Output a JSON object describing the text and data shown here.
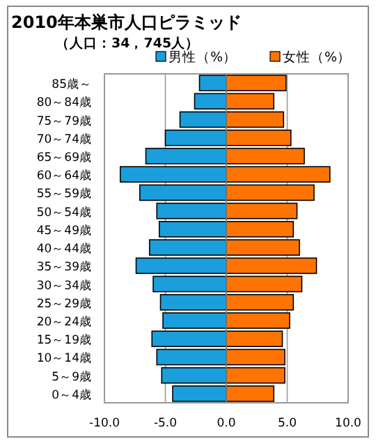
{
  "chart_data": {
    "type": "bar",
    "orientation": "horizontal",
    "title": "2010年本巣市人口ピラミッド",
    "subtitle": "（人口：34，745人）",
    "categories": [
      "85歳～",
      "80～84歳",
      "75～79歳",
      "70～74歳",
      "65～69歳",
      "60～64歳",
      "55～59歳",
      "50～54歳",
      "45～49歳",
      "40～44歳",
      "35～39歳",
      "30～34歳",
      "25～29歳",
      "20～24歳",
      "15～19歳",
      "10～14歳",
      "5～9歳",
      "0～4歳"
    ],
    "series": [
      {
        "name": "男性（%）",
        "color": "#1a9fdc",
        "values": [
          -2.2,
          -2.6,
          -3.8,
          -5.0,
          -6.6,
          -8.7,
          -7.1,
          -5.7,
          -5.5,
          -6.3,
          -7.4,
          -6.0,
          -5.4,
          -5.2,
          -6.1,
          -5.7,
          -5.3,
          -4.4
        ]
      },
      {
        "name": "女性（%）",
        "color": "#ff7400",
        "values": [
          4.9,
          3.9,
          4.7,
          5.3,
          6.4,
          8.5,
          7.2,
          5.8,
          5.5,
          6.0,
          7.4,
          6.2,
          5.5,
          5.2,
          4.6,
          4.8,
          4.8,
          3.9
        ]
      }
    ],
    "xlim": [
      -10,
      10
    ],
    "xticks": [
      {
        "value": -10,
        "label": "-10.0"
      },
      {
        "value": -5,
        "label": "-5.0"
      },
      {
        "value": 0,
        "label": "0.0"
      },
      {
        "value": 5,
        "label": "5.0"
      },
      {
        "value": 10,
        "label": "10.0"
      }
    ],
    "grid": "x",
    "legend": "top",
    "stacked": true
  }
}
